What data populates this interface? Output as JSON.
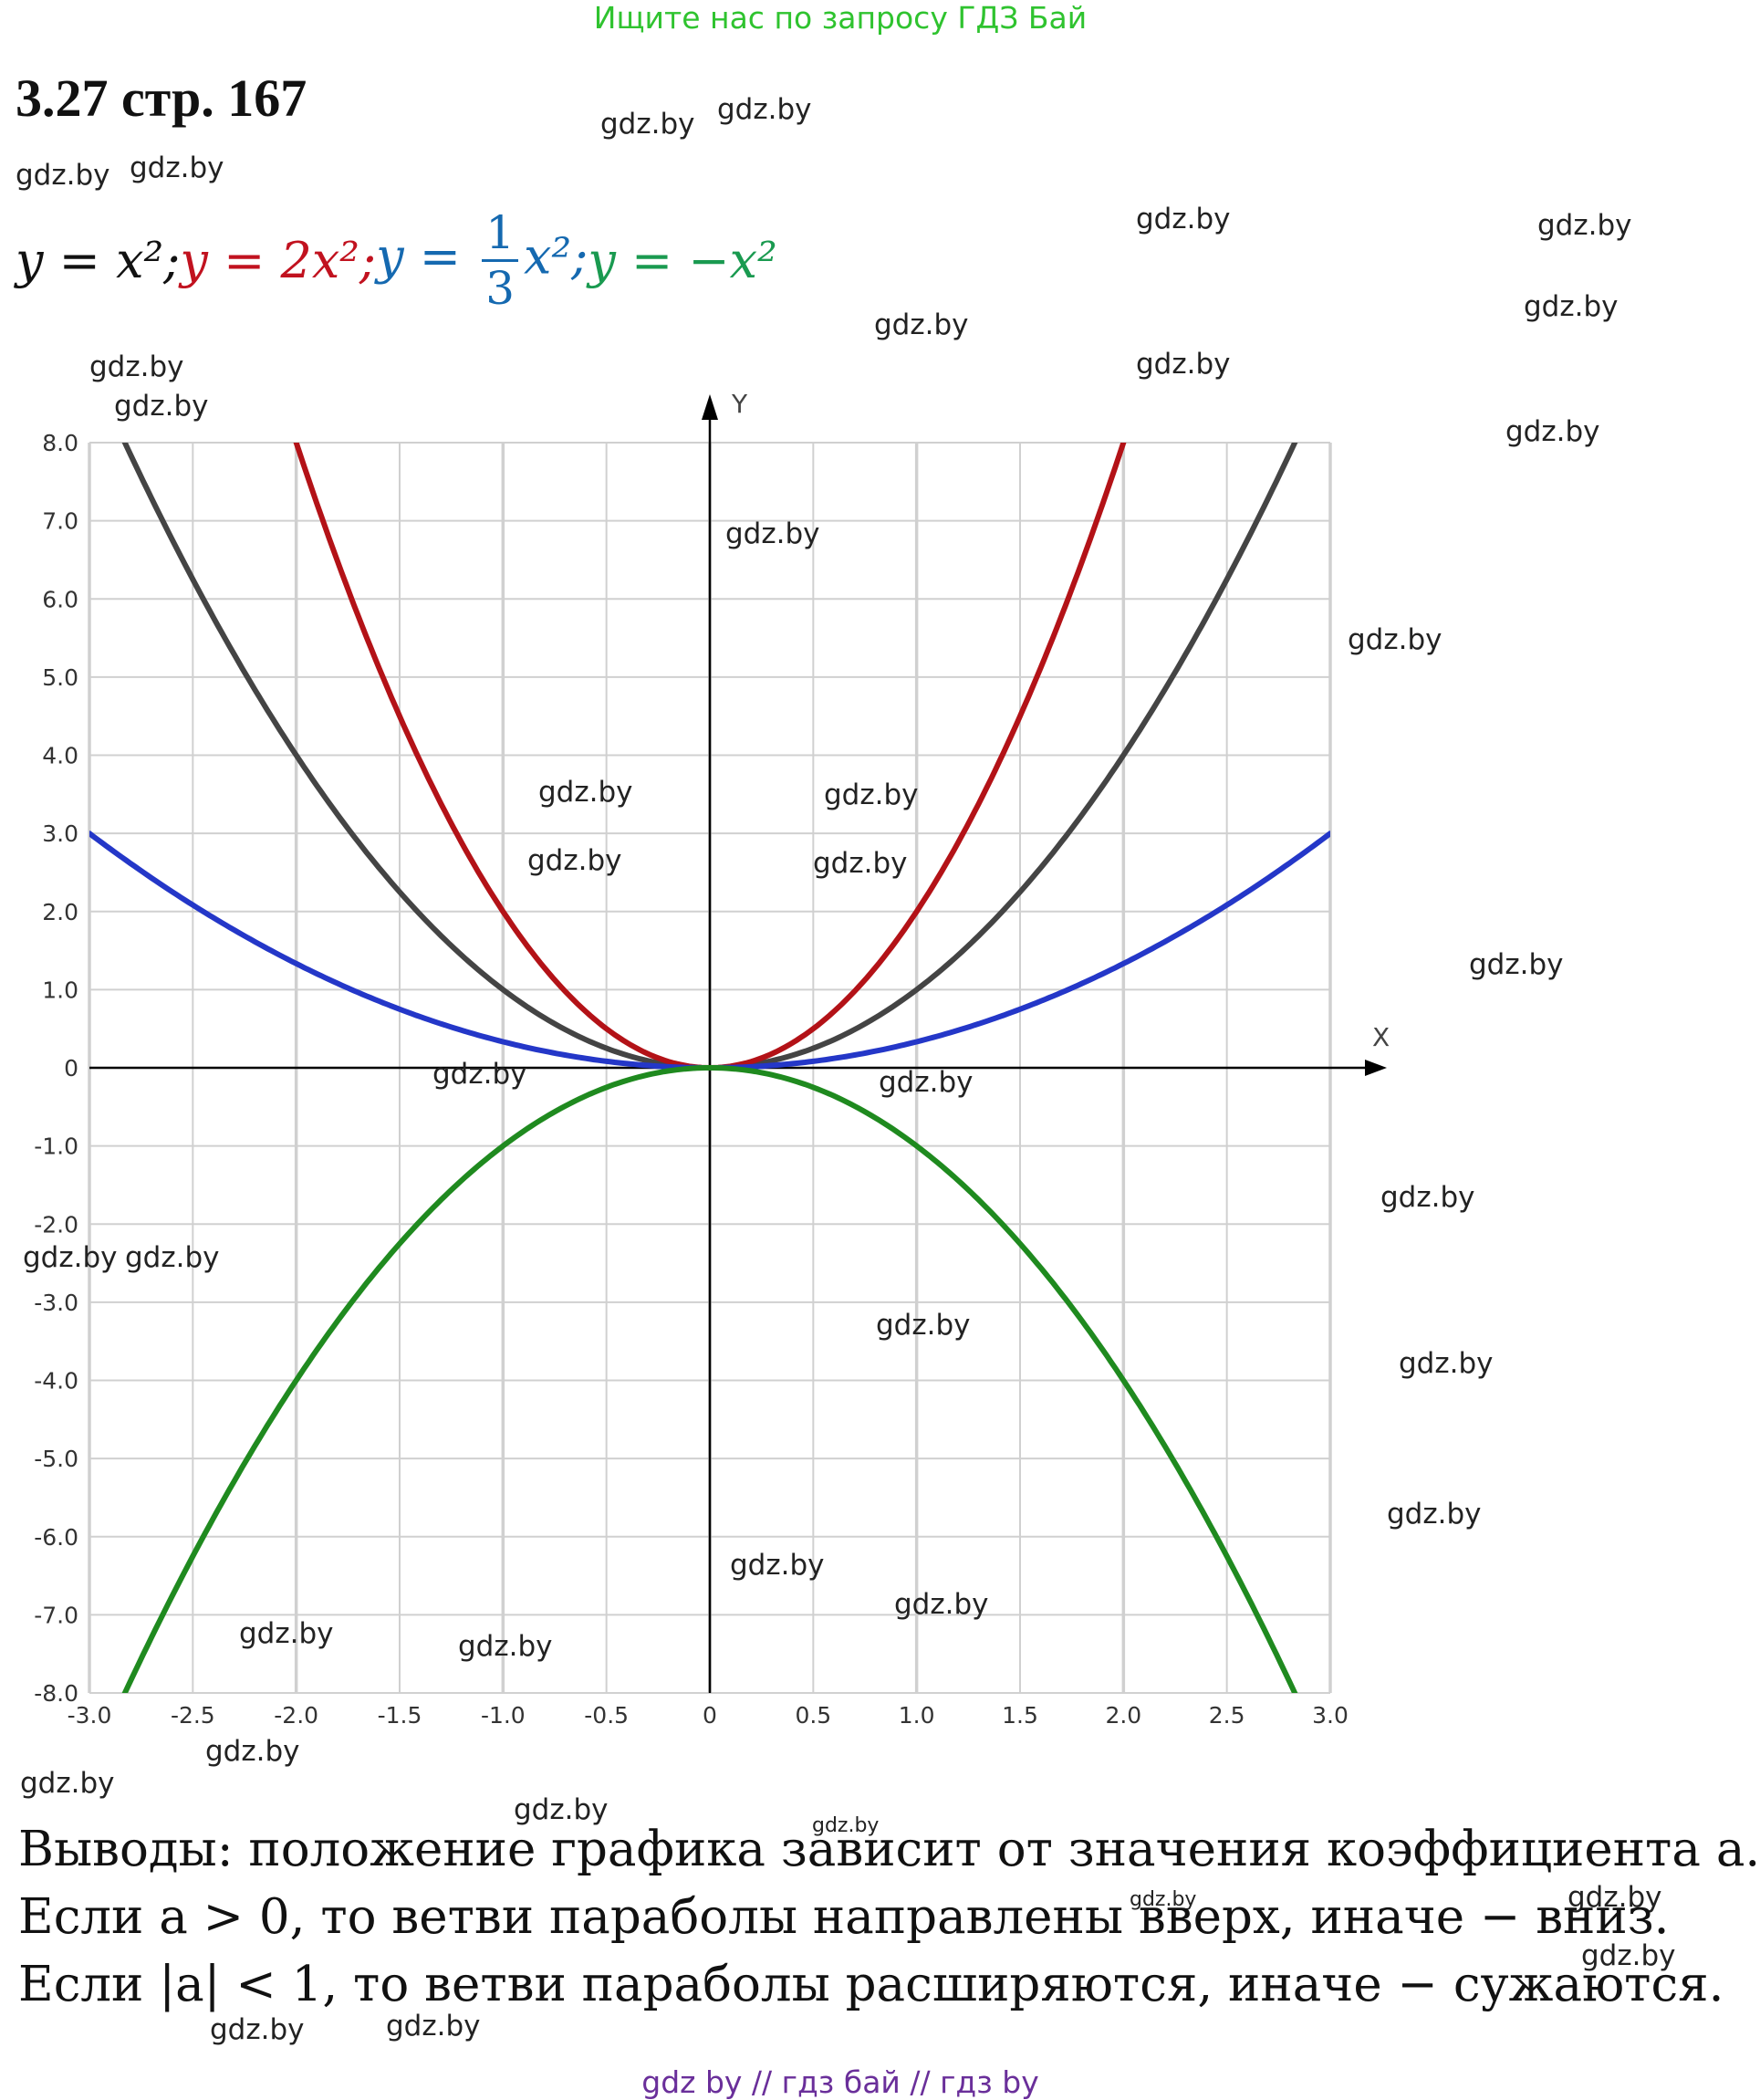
{
  "banner": "Ищите нас по запросу ГДЗ Бай",
  "task_title": "3.27 стр. 167",
  "formula": {
    "f1": "y = x²;",
    "f2": "y = 2x²;",
    "f3_left": "y = ",
    "f3_num": "1",
    "f3_den": "3",
    "f3_right": "x²;",
    "f4": "y = −x²"
  },
  "watermark": "gdz.by",
  "colors": {
    "y_x2": "#444444",
    "y_2x2": "#b31217",
    "y_third_x2": "#2437c8",
    "y_neg_x2": "#1f8a1f",
    "grid": "#d0d0d0",
    "banner": "#2fc32f",
    "footer": "#6a2f9a"
  },
  "chart_data": {
    "type": "line",
    "xlabel": "X",
    "ylabel": "Y",
    "xlim": [
      -3.0,
      3.0
    ],
    "ylim": [
      -8.0,
      8.0
    ],
    "x_ticks": [
      "-3.0",
      "-2.5",
      "-2.0",
      "-1.5",
      "-1.0",
      "-0.5",
      "0",
      "0.5",
      "1.0",
      "1.5",
      "2.0",
      "2.5",
      "3.0"
    ],
    "y_ticks": [
      "8.0",
      "7.0",
      "6.0",
      "5.0",
      "4.0",
      "3.0",
      "2.0",
      "1.0",
      "0",
      "-1.0",
      "-2.0",
      "-3.0",
      "-4.0",
      "-5.0",
      "-6.0",
      "-7.0",
      "-8.0"
    ],
    "grid": true,
    "series": [
      {
        "name": "y = x²",
        "coefficient": 1,
        "color": "#444444",
        "points": [
          [
            -2.83,
            8.0
          ],
          [
            -2.5,
            6.25
          ],
          [
            -2.0,
            4.0
          ],
          [
            -1.5,
            2.25
          ],
          [
            -1.0,
            1.0
          ],
          [
            -0.5,
            0.25
          ],
          [
            0,
            0
          ],
          [
            0.5,
            0.25
          ],
          [
            1.0,
            1.0
          ],
          [
            1.5,
            2.25
          ],
          [
            2.0,
            4.0
          ],
          [
            2.5,
            6.25
          ],
          [
            2.83,
            8.0
          ]
        ]
      },
      {
        "name": "y = 2x²",
        "coefficient": 2,
        "color": "#b31217",
        "points": [
          [
            -2.0,
            8.0
          ],
          [
            -1.5,
            4.5
          ],
          [
            -1.0,
            2.0
          ],
          [
            -0.5,
            0.5
          ],
          [
            0,
            0
          ],
          [
            0.5,
            0.5
          ],
          [
            1.0,
            2.0
          ],
          [
            1.5,
            4.5
          ],
          [
            2.0,
            8.0
          ]
        ]
      },
      {
        "name": "y = 1/3 x²",
        "coefficient": 0.3333,
        "color": "#2437c8",
        "points": [
          [
            -3.0,
            3.0
          ],
          [
            -2.5,
            2.08
          ],
          [
            -2.0,
            1.33
          ],
          [
            -1.5,
            0.75
          ],
          [
            -1.0,
            0.33
          ],
          [
            -0.5,
            0.08
          ],
          [
            0,
            0
          ],
          [
            0.5,
            0.08
          ],
          [
            1.0,
            0.33
          ],
          [
            1.5,
            0.75
          ],
          [
            2.0,
            1.33
          ],
          [
            2.5,
            2.08
          ],
          [
            3.0,
            3.0
          ]
        ]
      },
      {
        "name": "y = −x²",
        "coefficient": -1,
        "color": "#1f8a1f",
        "points": [
          [
            -2.83,
            -8.0
          ],
          [
            -2.5,
            -6.25
          ],
          [
            -2.0,
            -4.0
          ],
          [
            -1.5,
            -2.25
          ],
          [
            -1.0,
            -1.0
          ],
          [
            -0.5,
            -0.25
          ],
          [
            0,
            0
          ],
          [
            0.5,
            -0.25
          ],
          [
            1.0,
            -1.0
          ],
          [
            1.5,
            -2.25
          ],
          [
            2.0,
            -4.0
          ],
          [
            2.5,
            -6.25
          ],
          [
            2.83,
            -8.0
          ]
        ]
      }
    ]
  },
  "conclusions": [
    "Выводы: положение графика зависит от значения коэффициента a.",
    "Если a > 0, то ветви параболы направлены вверх, иначе − вниз.",
    "Если |a| < 1, то ветви параболы расширяются, иначе − сужаются."
  ],
  "footer": "gdz by  //  гдз бай  //  гдз by"
}
